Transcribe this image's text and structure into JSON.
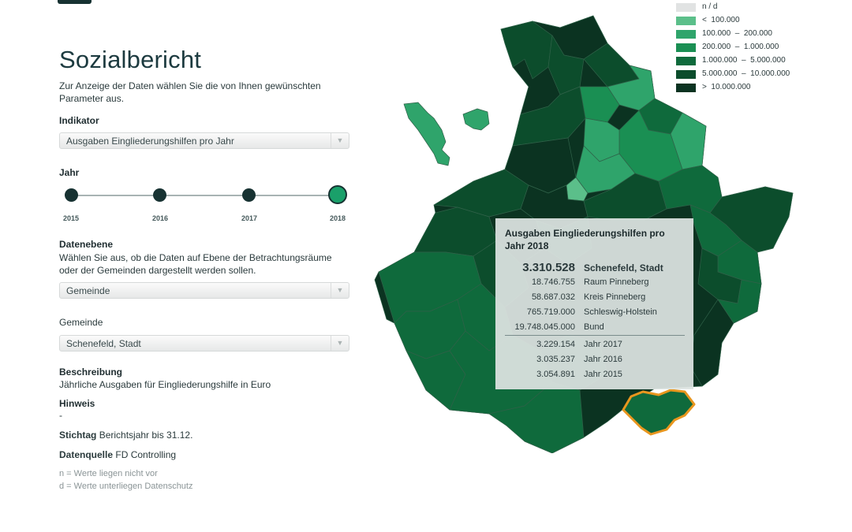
{
  "page": {
    "title": "Sozialbericht",
    "intro": "Zur Anzeige der Daten wählen Sie die von Ihnen gewünschten Parameter aus."
  },
  "indikator": {
    "label": "Indikator",
    "value": "Ausgaben Eingliederungshilfen pro Jahr"
  },
  "jahr": {
    "label": "Jahr",
    "years": [
      "2015",
      "2016",
      "2017",
      "2018"
    ],
    "selected": "2018"
  },
  "datenebene": {
    "label": "Datenebene",
    "description": "Wählen Sie aus, ob die Daten auf Ebene der Betrachtungsräume oder der Gemeinden dargestellt werden sollen.",
    "value": "Gemeinde"
  },
  "gemeinde": {
    "label": "Gemeinde",
    "value": "Schenefeld, Stadt"
  },
  "beschreibung": {
    "label": "Beschreibung",
    "text": "Jährliche Ausgaben für Eingliederungshilfe in Euro"
  },
  "hinweis": {
    "label": "Hinweis",
    "text": "-"
  },
  "stichtag": {
    "label": "Stichtag",
    "text": "Berichtsjahr bis 31.12."
  },
  "datenquelle": {
    "label": "Datenquelle",
    "text": "FD Controlling"
  },
  "notes": {
    "n": "n = Werte liegen nicht vor",
    "d": "d = Werte unterliegen Datenschutz"
  },
  "legend": {
    "items": [
      {
        "label": "n / d",
        "color": "#e1e3e3"
      },
      {
        "label": "<  100.000",
        "color": "#5bbf8a"
      },
      {
        "label": "100.000  –  200.000",
        "color": "#2fa46b"
      },
      {
        "label": "200.000  –  1.000.000",
        "color": "#1a8f53"
      },
      {
        "label": "1.000.000  –  5.000.000",
        "color": "#0f6a3c"
      },
      {
        "label": "5.000.000  –  10.000.000",
        "color": "#0c4d2c"
      },
      {
        "label": ">  10.000.000",
        "color": "#0b3321"
      }
    ]
  },
  "tooltip": {
    "title": "Ausgaben Eingliederungshilfen pro Jahr 2018",
    "main": {
      "value": "3.310.528",
      "name": "Schenefeld, Stadt"
    },
    "rows": [
      {
        "value": "18.746.755",
        "name": "Raum Pinneberg"
      },
      {
        "value": "58.687.032",
        "name": "Kreis Pinneberg"
      },
      {
        "value": "765.719.000",
        "name": "Schleswig-Holstein"
      },
      {
        "value": "19.748.045.000",
        "name": "Bund"
      }
    ],
    "history": [
      {
        "value": "3.229.154",
        "name": "Jahr 2017"
      },
      {
        "value": "3.035.237",
        "name": "Jahr 2016"
      },
      {
        "value": "3.054.891",
        "name": "Jahr 2015"
      }
    ]
  },
  "colors": {
    "highlight_outline": "#e8961e",
    "slider_active": "#1aa06a",
    "slider_dot": "#173232"
  }
}
